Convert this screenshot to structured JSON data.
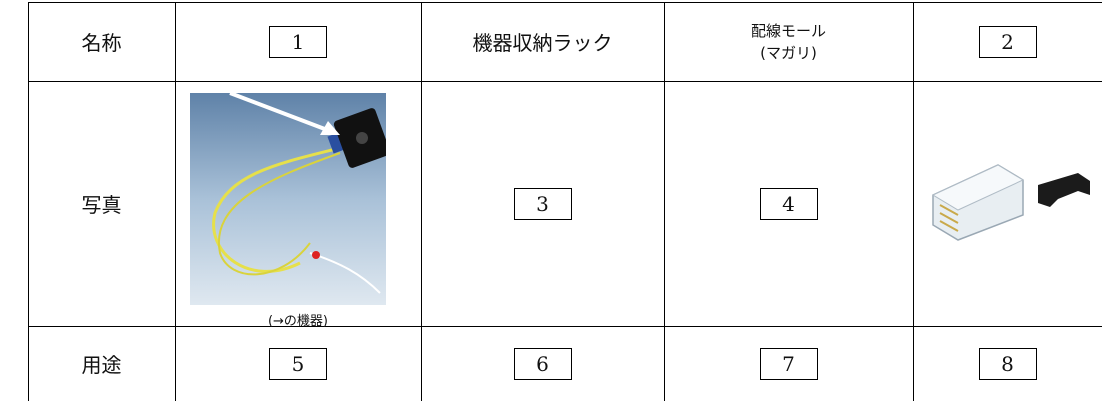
{
  "table": {
    "rows": [
      [
        "名称",
        "1",
        "機器収納ラック",
        [
          "配線モール",
          "(マガリ)"
        ],
        "2"
      ],
      [
        "写真",
        "(→の機器)",
        "3",
        "4"
      ],
      [
        "用途",
        "5",
        "6",
        "7",
        "8"
      ]
    ]
  }
}
